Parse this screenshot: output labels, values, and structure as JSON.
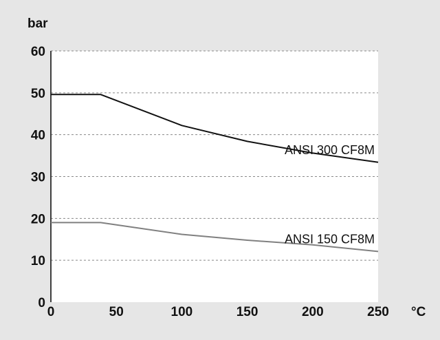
{
  "chart_data": {
    "type": "line",
    "ylabel": "bar",
    "xlabel": "°C",
    "xlim": [
      0,
      250
    ],
    "ylim": [
      0,
      60
    ],
    "x_ticks": [
      "0",
      "50",
      "100",
      "150",
      "200",
      "250"
    ],
    "y_ticks": [
      "0",
      "10",
      "20",
      "30",
      "40",
      "50",
      "60"
    ],
    "grid": "horizontal dashed",
    "series": [
      {
        "name": "ANSI 300 CF8M",
        "color": "#111111",
        "x": [
          0,
          38,
          100,
          150,
          200,
          250
        ],
        "y": [
          49.6,
          49.6,
          42.2,
          38.4,
          35.6,
          33.4
        ]
      },
      {
        "name": "ANSI 150 CF8M",
        "color": "#808080",
        "x": [
          0,
          38,
          100,
          150,
          200,
          250
        ],
        "y": [
          19,
          19,
          16.2,
          14.8,
          13.7,
          12.1
        ]
      }
    ]
  }
}
